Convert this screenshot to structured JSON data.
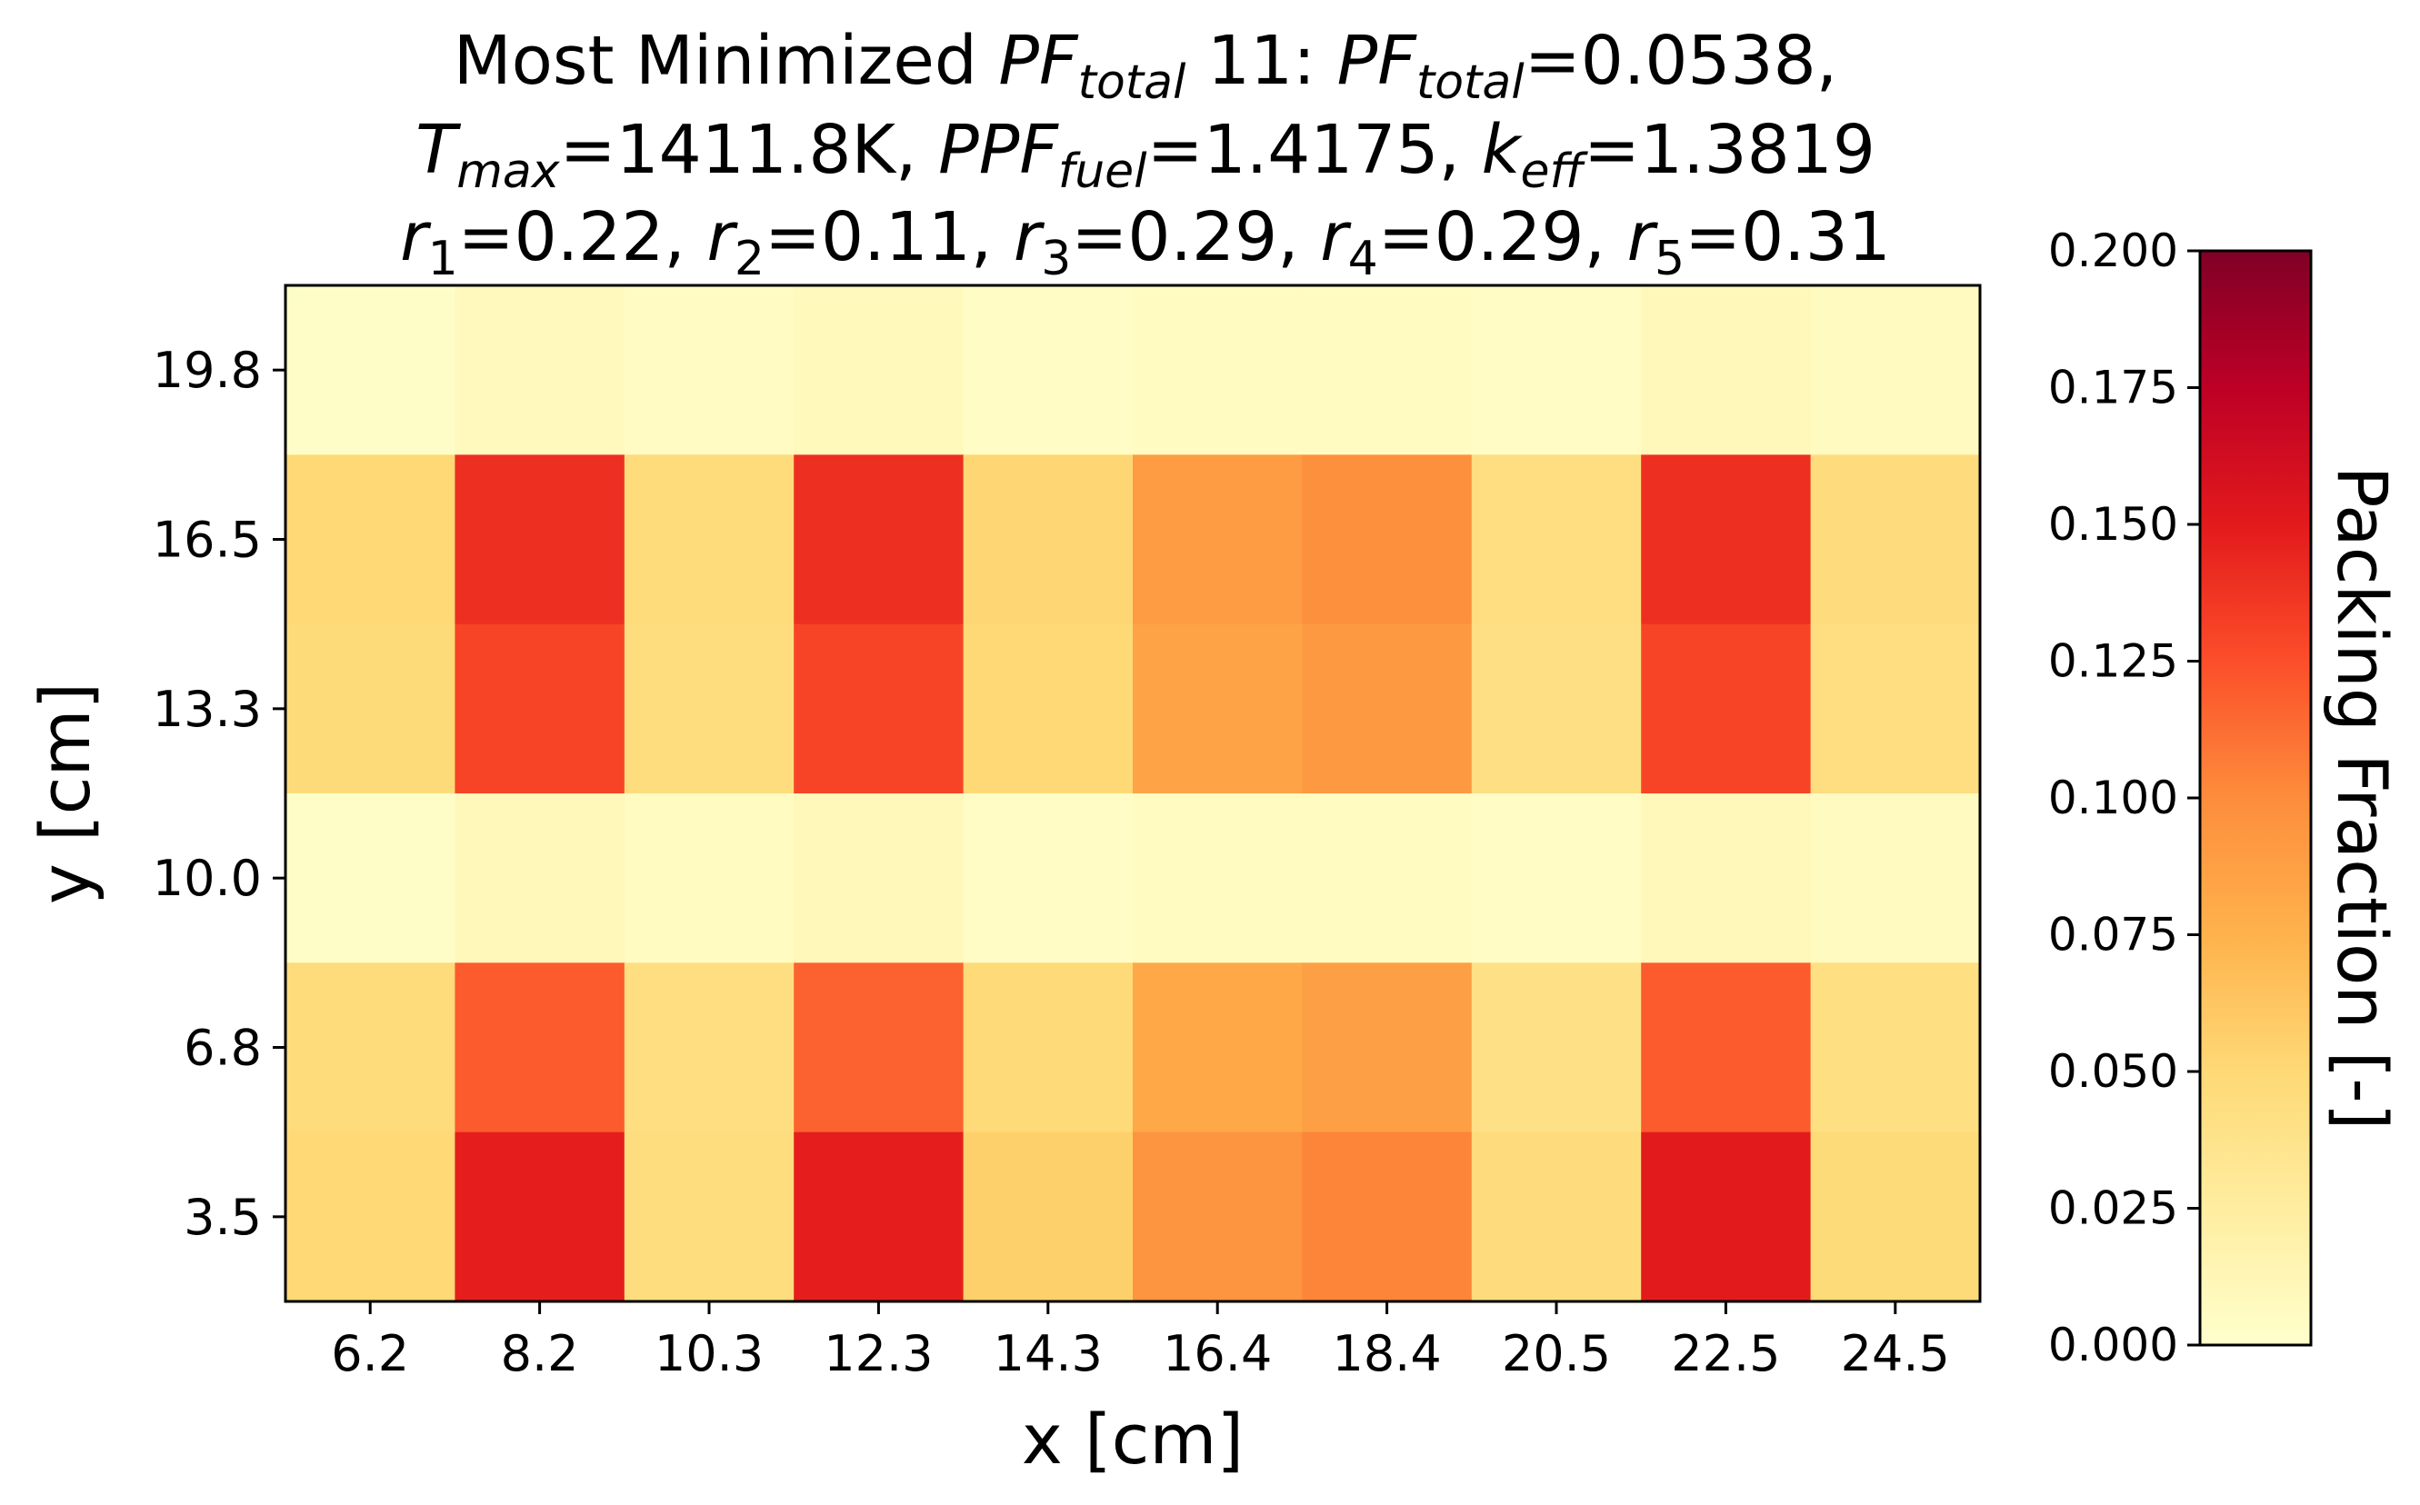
{
  "chart_data": {
    "type": "heatmap",
    "title": {
      "line1": [
        {
          "t": "Most Minimized "
        },
        {
          "t": "PF",
          "it": true
        },
        {
          "t": "total",
          "it": true,
          "sub": true
        },
        {
          "t": " 11: "
        },
        {
          "t": "PF",
          "it": true
        },
        {
          "t": "total",
          "it": true,
          "sub": true
        },
        {
          "t": "=0.0538,"
        }
      ],
      "line2": [
        {
          "t": "T",
          "it": true
        },
        {
          "t": "max",
          "it": true,
          "sub": true
        },
        {
          "t": "=1411.8K, "
        },
        {
          "t": "PPF",
          "it": true
        },
        {
          "t": "fuel",
          "it": true,
          "sub": true
        },
        {
          "t": "=1.4175, "
        },
        {
          "t": "k",
          "it": true
        },
        {
          "t": "eff",
          "it": true,
          "sub": true
        },
        {
          "t": "=1.3819"
        }
      ],
      "line3": [
        {
          "t": "r",
          "it": true
        },
        {
          "t": "1",
          "sub": true
        },
        {
          "t": "=0.22, "
        },
        {
          "t": "r",
          "it": true
        },
        {
          "t": "2",
          "sub": true
        },
        {
          "t": "=0.11, "
        },
        {
          "t": "r",
          "it": true
        },
        {
          "t": "3",
          "sub": true
        },
        {
          "t": "=0.29, "
        },
        {
          "t": "r",
          "it": true
        },
        {
          "t": "4",
          "sub": true
        },
        {
          "t": "=0.29, "
        },
        {
          "t": "r",
          "it": true
        },
        {
          "t": "5",
          "sub": true
        },
        {
          "t": "=0.31"
        }
      ]
    },
    "xlabel": "x [cm]",
    "ylabel": "y [cm]",
    "x_ticks": [
      "6.2",
      "8.2",
      "10.3",
      "12.3",
      "14.3",
      "16.4",
      "18.4",
      "20.5",
      "22.5",
      "24.5"
    ],
    "y_ticks": [
      "19.8",
      "16.5",
      "13.3",
      "10.0",
      "6.8",
      "3.5"
    ],
    "values": [
      [
        0.003,
        0.008,
        0.005,
        0.009,
        0.004,
        0.006,
        0.006,
        0.004,
        0.01,
        0.007
      ],
      [
        0.05,
        0.14,
        0.047,
        0.14,
        0.051,
        0.09,
        0.098,
        0.044,
        0.14,
        0.046
      ],
      [
        0.048,
        0.13,
        0.045,
        0.13,
        0.05,
        0.085,
        0.092,
        0.042,
        0.13,
        0.044
      ],
      [
        0.003,
        0.01,
        0.006,
        0.01,
        0.004,
        0.006,
        0.006,
        0.004,
        0.01,
        0.007
      ],
      [
        0.047,
        0.12,
        0.044,
        0.117,
        0.049,
        0.082,
        0.088,
        0.04,
        0.12,
        0.043
      ],
      [
        0.05,
        0.148,
        0.045,
        0.148,
        0.056,
        0.095,
        0.103,
        0.046,
        0.15,
        0.048
      ]
    ],
    "colorbar": {
      "label": "Packing Fraction [-]",
      "range": [
        0.0,
        0.2
      ],
      "ticks": [
        "0.000",
        "0.025",
        "0.050",
        "0.075",
        "0.100",
        "0.125",
        "0.150",
        "0.175",
        "0.200"
      ],
      "colormap": "YlOrRd",
      "colors": [
        "#ffffcc",
        "#ffeda0",
        "#fed976",
        "#feb24c",
        "#fd8d3c",
        "#fc4e2a",
        "#e31a1c",
        "#bd0026",
        "#800026"
      ]
    }
  }
}
